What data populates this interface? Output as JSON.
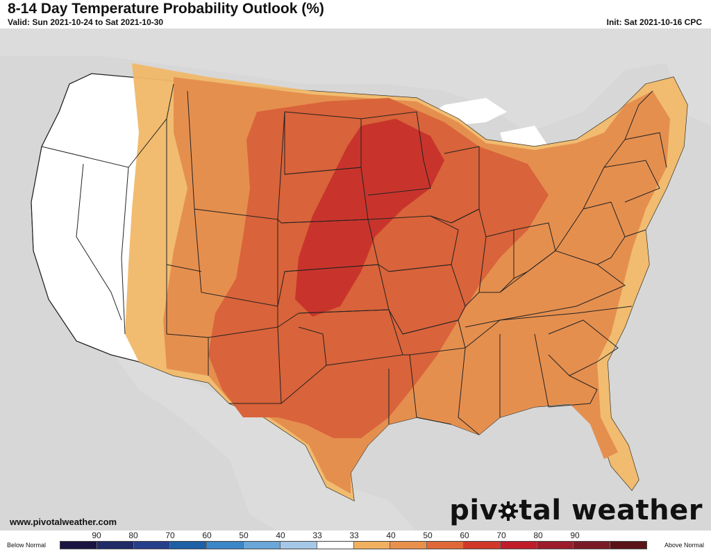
{
  "header": {
    "title": "8-14 Day Temperature Probability Outlook (%)",
    "valid": "Valid: Sun 2021-10-24 to Sat 2021-10-30",
    "init": "Init: Sat 2021-10-16 CPC"
  },
  "footer": {
    "url": "www.pivotalweather.com",
    "brand_left": "piv",
    "brand_right": "tal weather"
  },
  "legend": {
    "left_label": "Below Normal",
    "right_label": "Above Normal",
    "ticks": [
      "90",
      "80",
      "70",
      "60",
      "50",
      "40",
      "33",
      "33",
      "40",
      "50",
      "60",
      "70",
      "80",
      "90"
    ],
    "colors": [
      "#1a1440",
      "#1f2a66",
      "#263f8a",
      "#1f5fa6",
      "#3b86c6",
      "#6aa6d8",
      "#a6c8e8",
      "#ffffff",
      "#f0b060",
      "#e8904c",
      "#e06838",
      "#d2382a",
      "#c01c2a",
      "#9c1c2c",
      "#7a1a26",
      "#5a1418"
    ]
  },
  "map": {
    "colors": {
      "ocean": "#d7d7d7",
      "land": "#dcdcdc",
      "outside_us": "#c8c8c8",
      "near_normal": "#ffffff",
      "above_40": "#f0b868",
      "above_50": "#e58f4f",
      "above_60": "#d9633a",
      "above_70": "#c8342c",
      "borders": "#222222",
      "lakes": "#ffffff"
    }
  }
}
